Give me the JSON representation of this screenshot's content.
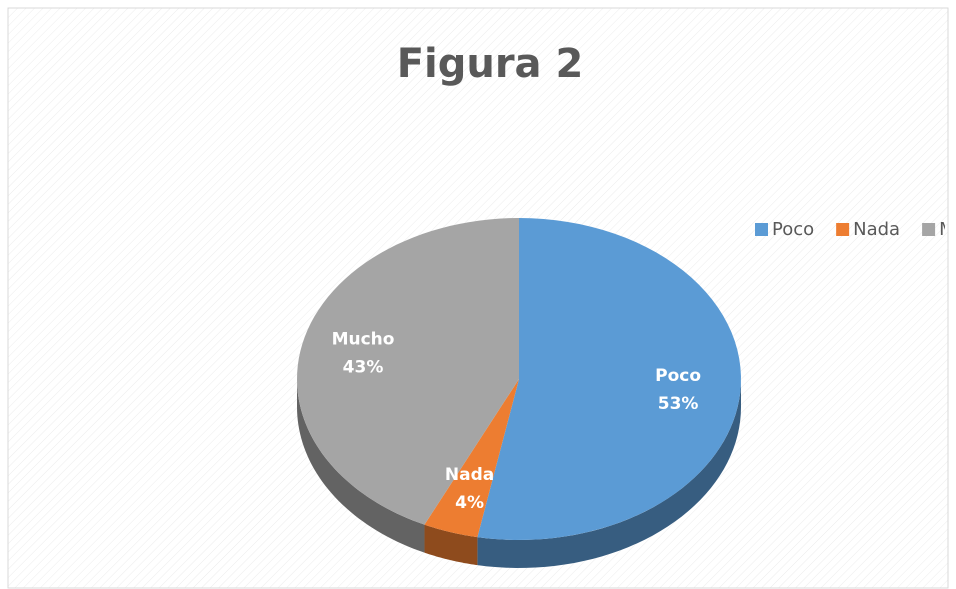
{
  "chart_data": {
    "type": "pie",
    "title": "Figura 2",
    "categories": [
      "Poco",
      "Nada",
      "Mucho"
    ],
    "values": [
      53,
      4,
      43
    ],
    "value_labels": [
      "53%",
      "4%",
      "43%"
    ],
    "colors": [
      "#5b9bd5",
      "#ed7d31",
      "#a5a5a5"
    ],
    "legend": "right"
  }
}
